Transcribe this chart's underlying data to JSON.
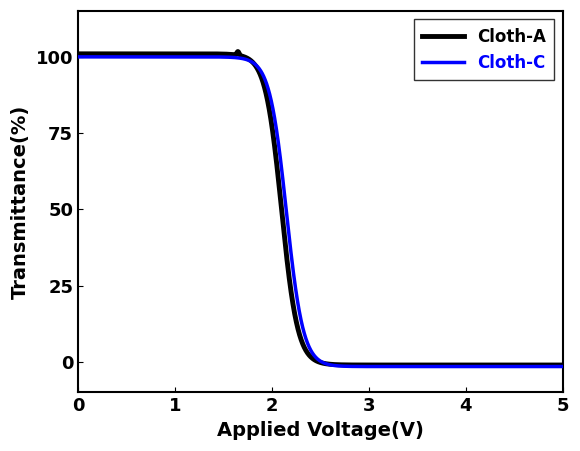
{
  "title": "",
  "xlabel": "Applied Voltage(V)",
  "ylabel": "Transmittance(%)",
  "xlim": [
    0,
    5
  ],
  "ylim": [
    -10,
    115
  ],
  "yticks": [
    0,
    25,
    50,
    75,
    100
  ],
  "xticks": [
    0,
    1,
    2,
    3,
    4,
    5
  ],
  "legend": [
    {
      "label": "Cloth-A",
      "color": "#000000",
      "linewidth": 3.5
    },
    {
      "label": "Cloth-C",
      "color": "#0000ff",
      "linewidth": 2.5
    }
  ],
  "cloth_a": {
    "color": "#000000",
    "linewidth": 3.5,
    "label": "Cloth-A",
    "vth": 2.1,
    "slope": 12.0,
    "ymax": 101.0,
    "ymin": -1.0
  },
  "cloth_c": {
    "color": "#0000ff",
    "linewidth": 2.5,
    "label": "Cloth-C",
    "vth": 2.15,
    "slope": 11.5,
    "ymax": 100.0,
    "ymin": -1.5
  },
  "background_color": "#ffffff",
  "xlabel_fontsize": 14,
  "ylabel_fontsize": 14,
  "xlabel_fontweight": "bold",
  "ylabel_fontweight": "bold",
  "tick_fontsize": 13,
  "legend_fontsize": 12
}
